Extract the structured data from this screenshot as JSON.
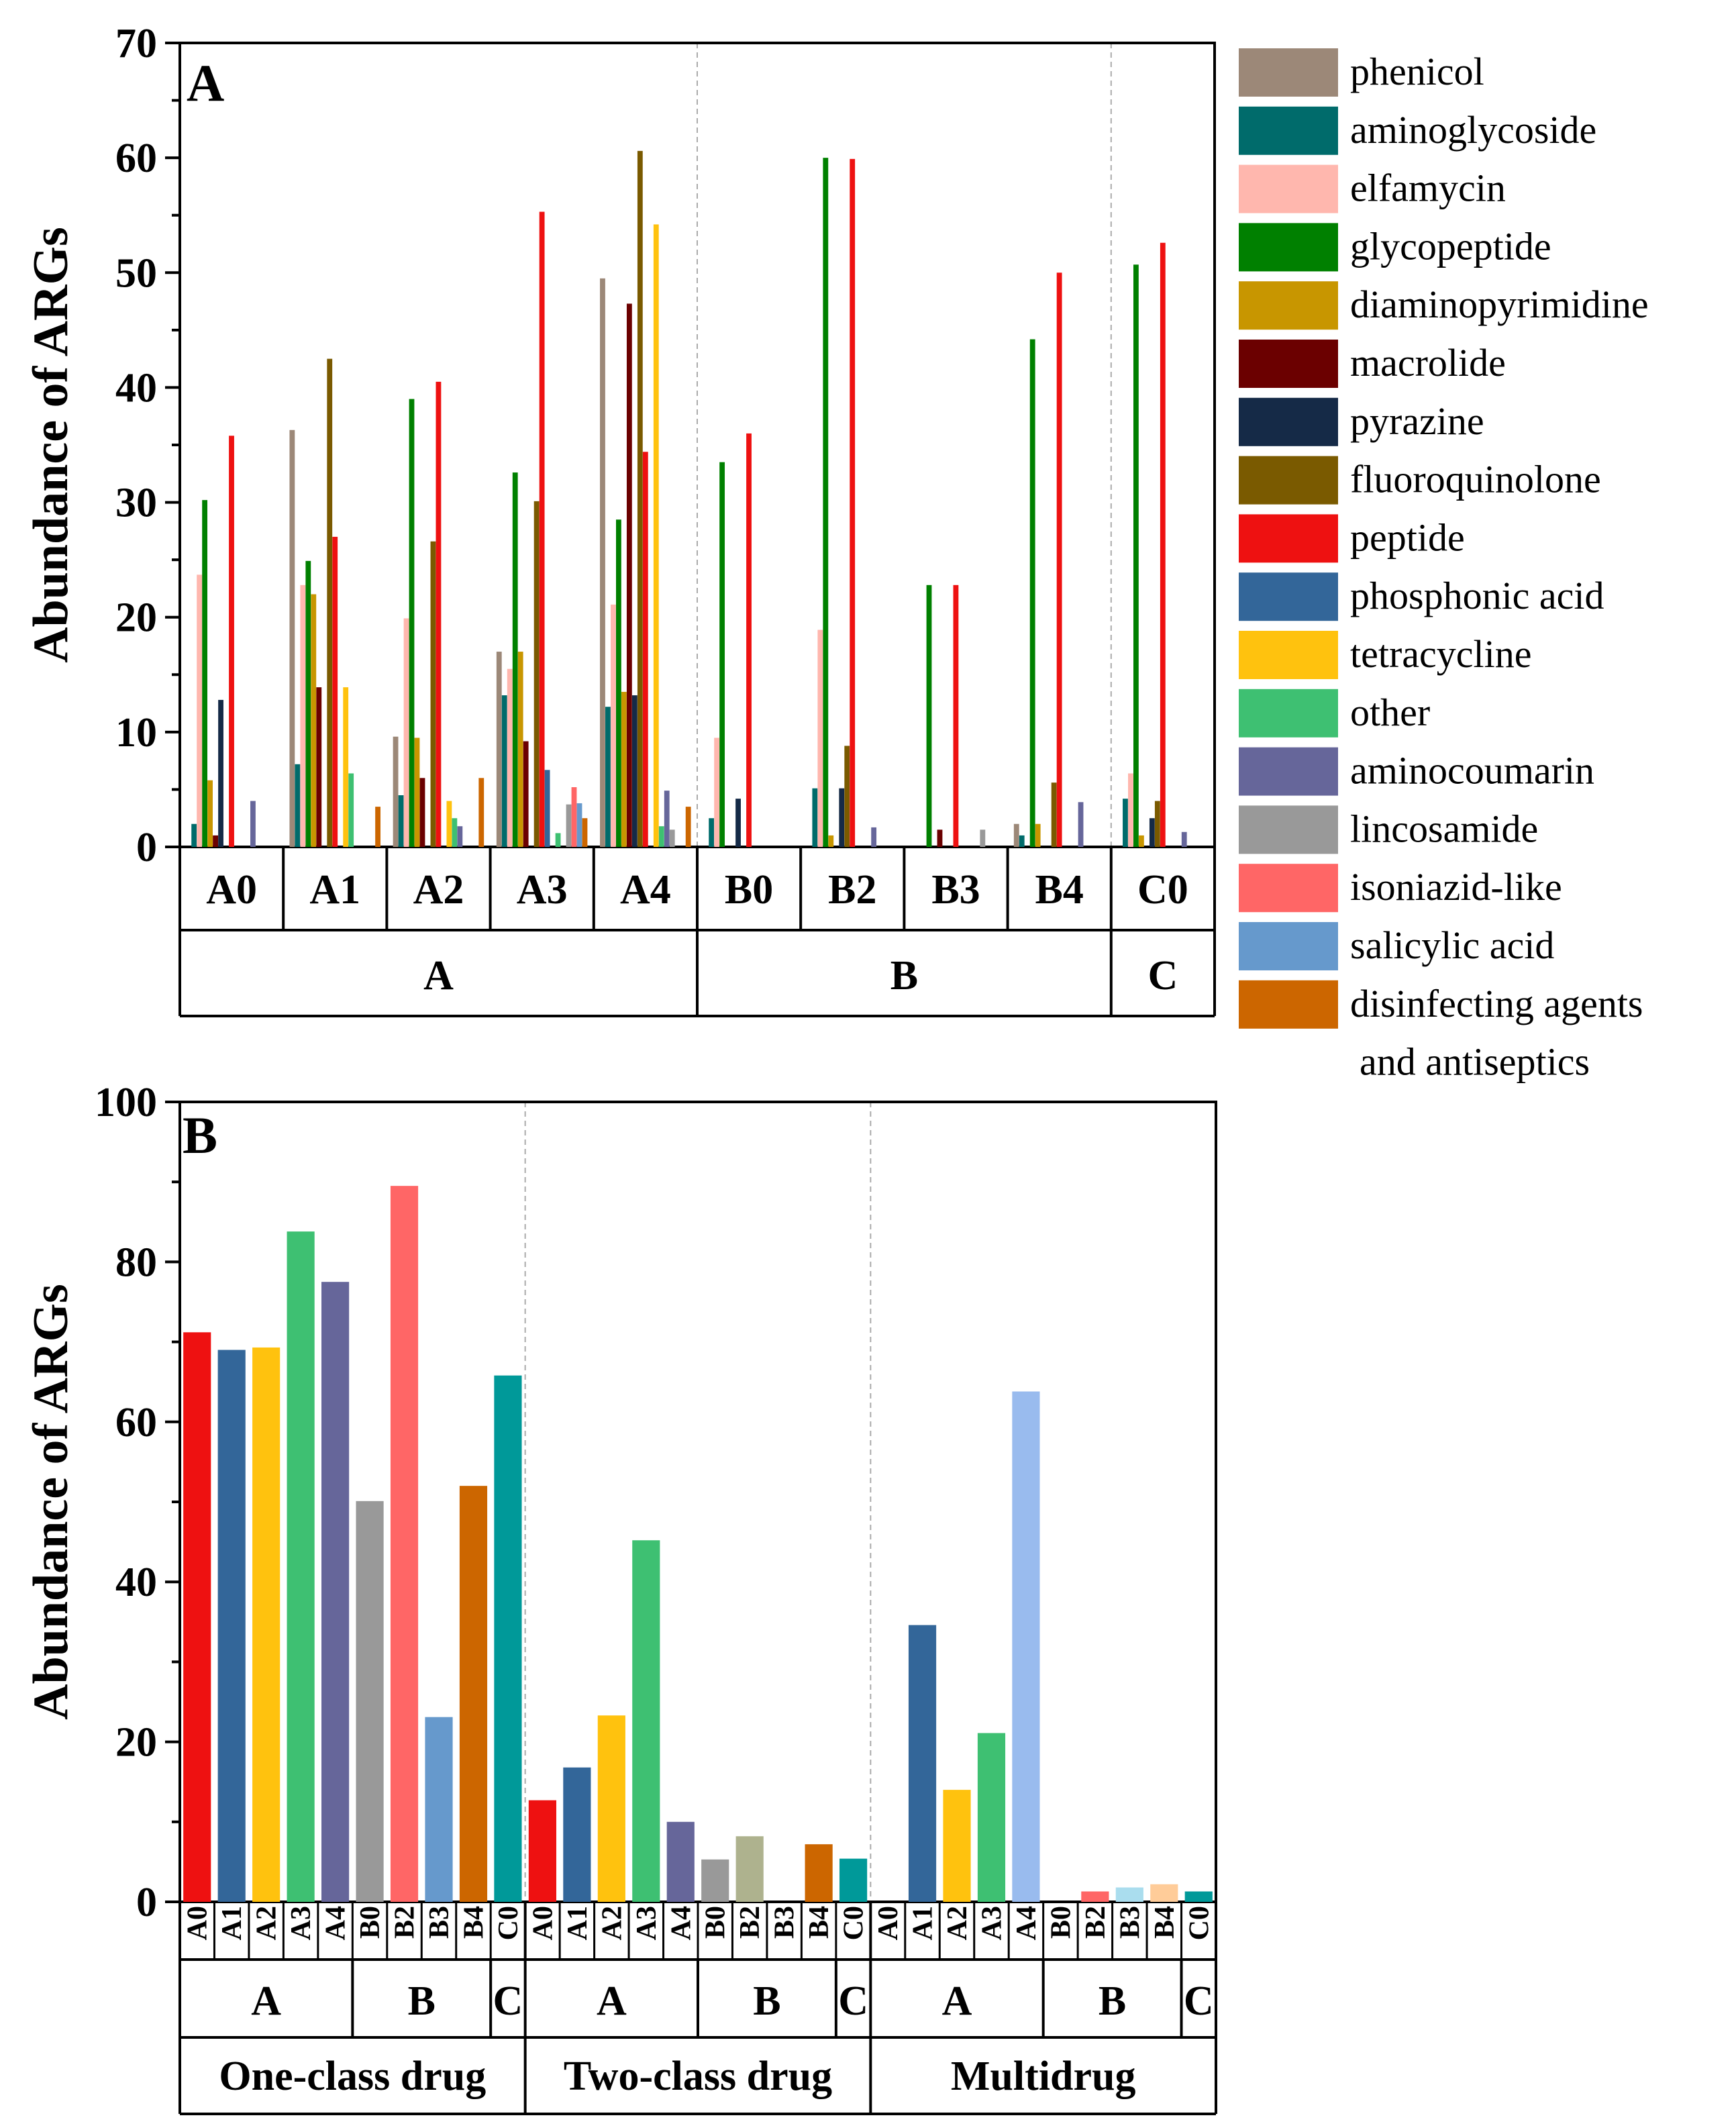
{
  "chart_data": [
    {
      "type": "bar",
      "panel_label": "A",
      "ylabel": "Abundance of ARGs",
      "ylim": [
        0,
        70
      ],
      "yticks": [
        0,
        10,
        20,
        30,
        40,
        50,
        60,
        70
      ],
      "samples": [
        "A0",
        "A1",
        "A2",
        "A3",
        "A4",
        "B0",
        "B2",
        "B3",
        "B4",
        "C0"
      ],
      "groups": [
        {
          "label": "A",
          "members": [
            "A0",
            "A1",
            "A2",
            "A3",
            "A4"
          ]
        },
        {
          "label": "B",
          "members": [
            "B0",
            "B2",
            "B3",
            "B4"
          ]
        },
        {
          "label": "C",
          "members": [
            "C0"
          ]
        }
      ],
      "series": [
        {
          "name": "phenicol",
          "color": "#9C8878",
          "values": [
            0,
            36.3,
            9.6,
            17,
            49.5,
            0,
            0,
            0,
            2,
            0
          ]
        },
        {
          "name": "aminoglycoside",
          "color": "#006B6B",
          "values": [
            2,
            7.2,
            4.5,
            13.2,
            12.2,
            2.5,
            5.1,
            0,
            1,
            4.2
          ]
        },
        {
          "name": "elfamycin",
          "color": "#FFB7AE",
          "values": [
            23.7,
            22.8,
            19.9,
            15.5,
            21.1,
            9.5,
            18.9,
            0,
            0,
            6.4
          ]
        },
        {
          "name": "glycopeptide",
          "color": "#008000",
          "values": [
            30.2,
            24.9,
            39,
            32.6,
            28.5,
            33.5,
            60,
            22.8,
            44.2,
            50.7
          ]
        },
        {
          "name": "diaminopyrimidine",
          "color": "#C89600",
          "values": [
            5.8,
            22,
            9.5,
            17,
            13.5,
            0,
            1,
            0,
            2,
            1
          ]
        },
        {
          "name": "macrolide",
          "color": "#6B0000",
          "values": [
            1,
            13.9,
            6,
            9.2,
            47.3,
            0,
            0,
            1.5,
            0,
            0
          ]
        },
        {
          "name": "pyrazine",
          "color": "#152A47",
          "values": [
            12.8,
            0,
            0,
            0,
            13.2,
            4.2,
            5.1,
            0,
            0,
            2.5
          ]
        },
        {
          "name": "fluoroquinolone",
          "color": "#7A5A00",
          "values": [
            0,
            42.5,
            26.6,
            30.1,
            60.6,
            0,
            8.8,
            0,
            5.6,
            4
          ]
        },
        {
          "name": "peptide",
          "color": "#EE1111",
          "values": [
            35.8,
            27,
            40.5,
            55.3,
            34.4,
            36,
            59.9,
            22.8,
            50,
            52.6
          ]
        },
        {
          "name": "phosphonic acid",
          "color": "#336699",
          "values": [
            0,
            0,
            0,
            6.7,
            0,
            0,
            0,
            0,
            0,
            0
          ]
        },
        {
          "name": "tetracycline",
          "color": "#FFC20E",
          "values": [
            0,
            13.9,
            4,
            0,
            54.2,
            0,
            0,
            0,
            0,
            0
          ]
        },
        {
          "name": "other",
          "color": "#3EC072",
          "values": [
            0,
            6.4,
            2.5,
            1.2,
            1.8,
            0,
            0,
            0,
            0,
            0
          ]
        },
        {
          "name": "aminocoumarin",
          "color": "#66669A",
          "values": [
            4,
            0,
            1.8,
            0,
            4.9,
            0,
            1.7,
            0,
            3.9,
            1.3
          ]
        },
        {
          "name": "lincosamide",
          "color": "#999999",
          "values": [
            0,
            0,
            0,
            3.7,
            1.5,
            0,
            0,
            1.5,
            0,
            0
          ]
        },
        {
          "name": "isoniazid-like",
          "color": "#FF6666",
          "values": [
            0,
            0,
            0,
            5.2,
            0,
            0,
            0,
            0,
            0,
            0
          ]
        },
        {
          "name": "salicylic acid",
          "color": "#6699CC",
          "values": [
            0,
            0,
            0,
            3.8,
            0,
            0,
            0,
            0,
            0,
            0
          ]
        },
        {
          "name": "disinfecting agents and antiseptics",
          "color": "#CC6600",
          "values": [
            0,
            3.5,
            6,
            2.5,
            3.5,
            0,
            0,
            0,
            0,
            0
          ]
        }
      ]
    },
    {
      "type": "bar",
      "panel_label": "B",
      "ylabel": "Abundance of ARGs",
      "ylim": [
        0,
        100
      ],
      "yticks": [
        0,
        20,
        40,
        60,
        80,
        100
      ],
      "classes": [
        {
          "label": "One-class drug",
          "samples": [
            "A0",
            "A1",
            "A2",
            "A3",
            "A4",
            "B0",
            "B2",
            "B3",
            "B4",
            "C0"
          ],
          "values": [
            71.2,
            69,
            69.3,
            83.8,
            77.5,
            50.1,
            89.5,
            23.1,
            52,
            65.8
          ],
          "colors": [
            "#EE1111",
            "#336699",
            "#FFC20E",
            "#3EC072",
            "#66669A",
            "#999999",
            "#FF6666",
            "#6699CC",
            "#CC6600",
            "#009999"
          ],
          "groups": [
            {
              "label": "A",
              "size": 5
            },
            {
              "label": "B",
              "size": 4
            },
            {
              "label": "C",
              "size": 1
            }
          ]
        },
        {
          "label": "Two-class drug",
          "samples": [
            "A0",
            "A1",
            "A2",
            "A3",
            "A4",
            "B0",
            "B2",
            "B3",
            "B4",
            "C0"
          ],
          "values": [
            12.7,
            16.8,
            23.3,
            45.2,
            10,
            5.3,
            8.2,
            0,
            7.2,
            5.4
          ],
          "colors": [
            "#EE1111",
            "#336699",
            "#FFC20E",
            "#3EC072",
            "#66669A",
            "#999999",
            "#AEB28E",
            "#6699CC",
            "#CC6600",
            "#009999"
          ],
          "groups": [
            {
              "label": "A",
              "size": 5
            },
            {
              "label": "B",
              "size": 4
            },
            {
              "label": "C",
              "size": 1
            }
          ]
        },
        {
          "label": "Multidrug",
          "samples": [
            "A0",
            "A1",
            "A2",
            "A3",
            "A4",
            "B0",
            "B2",
            "B3",
            "B4",
            "C0"
          ],
          "values": [
            0,
            34.6,
            14,
            21.1,
            63.8,
            0,
            1.3,
            1.8,
            2.2,
            1.3
          ],
          "colors": [
            "#EE1111",
            "#336699",
            "#FFC20E",
            "#3EC072",
            "#99BBEE",
            "#999999",
            "#FF6666",
            "#AADDEE",
            "#FFCC99",
            "#009999"
          ],
          "groups": [
            {
              "label": "A",
              "size": 5
            },
            {
              "label": "B",
              "size": 4
            },
            {
              "label": "C",
              "size": 1
            }
          ]
        }
      ]
    }
  ],
  "legend": {
    "items": [
      {
        "label": "phenicol",
        "color": "#9C8878"
      },
      {
        "label": "aminoglycoside",
        "color": "#006B6B"
      },
      {
        "label": "elfamycin",
        "color": "#FFB7AE"
      },
      {
        "label": "glycopeptide",
        "color": "#008000"
      },
      {
        "label": "diaminopyrimidine",
        "color": "#C89600"
      },
      {
        "label": "macrolide",
        "color": "#6B0000"
      },
      {
        "label": "pyrazine",
        "color": "#152A47"
      },
      {
        "label": "fluoroquinolone",
        "color": "#7A5A00"
      },
      {
        "label": "peptide",
        "color": "#EE1111"
      },
      {
        "label": "phosphonic acid",
        "color": "#336699"
      },
      {
        "label": "tetracycline",
        "color": "#FFC20E"
      },
      {
        "label": "other",
        "color": "#3EC072"
      },
      {
        "label": "aminocoumarin",
        "color": "#66669A"
      },
      {
        "label": "lincosamide",
        "color": "#999999"
      },
      {
        "label": "isoniazid-like",
        "color": "#FF6666"
      },
      {
        "label": "salicylic acid",
        "color": "#6699CC"
      },
      {
        "label": "disinfecting agents",
        "color": "#CC6600",
        "line2": "and antiseptics"
      }
    ]
  }
}
